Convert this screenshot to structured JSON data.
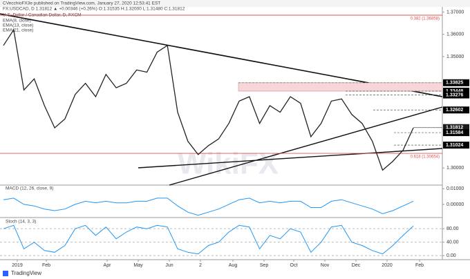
{
  "header": {
    "publisher": "CVecchioFX3e published on TradingView.com, January 27, 2020 12:53:41 EST",
    "symbol_line": "FX:USDCAD, D 1.31812 ▲ +0.00346 (+0.26%) O:1.31535 H:1.32000 L:1.31480 C:1.31812",
    "instrument": "U.S. Dollar / Canadian Dollar, D, FXCM",
    "indicators": [
      "EMA(8, close)",
      "EMA(13, close)",
      "EMA(21, close)"
    ]
  },
  "watermark": "WikiFX",
  "footer": {
    "brand": "TradingView"
  },
  "chart_data": [
    {
      "type": "line",
      "title": "USDCAD",
      "x_labels": [
        "2019",
        "Feb",
        "Apr",
        "May",
        "Jun",
        "2",
        "Aug",
        "Sep",
        "Oct",
        "Nov",
        "Dec",
        "2020",
        "Feb"
      ],
      "series": [
        {
          "name": "Close",
          "color": "#222222",
          "values": [
            1.355,
            1.362,
            1.335,
            1.34,
            1.328,
            1.318,
            1.322,
            1.333,
            1.338,
            1.332,
            1.342,
            1.336,
            1.338,
            1.344,
            1.343,
            1.352,
            1.355,
            1.325,
            1.312,
            1.306,
            1.31,
            1.313,
            1.32,
            1.33,
            1.332,
            1.32,
            1.328,
            1.325,
            1.332,
            1.329,
            1.314,
            1.32,
            1.33,
            1.331,
            1.324,
            1.32,
            1.312,
            1.299,
            1.303,
            1.308,
            1.318
          ]
        }
      ],
      "ylim": [
        1.2923,
        1.3723
      ],
      "yticks": [
        {
          "value": 1.37,
          "label": "1.37000"
        },
        {
          "value": 1.36,
          "label": "1.36000"
        },
        {
          "value": 1.35,
          "label": "1.35000"
        },
        {
          "value": 1.3,
          "label": "1.30000"
        }
      ],
      "levels": [
        1.33825,
        1.33448,
        1.33276,
        1.32602,
        1.31812,
        1.31584,
        1.31024
      ],
      "fib_levels": [
        {
          "value": 1.36858,
          "label": "0.382 (1.36858)"
        },
        {
          "value": 1.30654,
          "label": "0.618 (1.30654)"
        }
      ],
      "zone_color": "#f7d6d9",
      "fib_color": "#e05050"
    },
    {
      "type": "line",
      "title": "MACD (12, 26, close, 9)",
      "series": [
        {
          "name": "MACD",
          "color": "#2196f3",
          "values": [
            0.003,
            0.004,
            0.0,
            -0.001,
            -0.003,
            -0.004,
            -0.003,
            0.0,
            0.002,
            0.001,
            0.002,
            0.001,
            0.001,
            0.002,
            0.002,
            0.004,
            0.004,
            -0.001,
            -0.005,
            -0.007,
            -0.005,
            -0.003,
            0.0,
            0.003,
            0.004,
            0.001,
            0.002,
            0.001,
            0.002,
            0.002,
            -0.002,
            -0.002,
            0.002,
            0.003,
            0.001,
            -0.001,
            -0.003,
            -0.006,
            -0.004,
            -0.001,
            0.002
          ]
        }
      ],
      "ylim": [
        -0.008,
        0.0115
      ],
      "yticks": [
        {
          "value": 0.01,
          "label": "0.01000"
        },
        {
          "value": 0,
          "label": "0.00000"
        }
      ]
    },
    {
      "type": "line",
      "title": "Stoch (14, 3, 3)",
      "series": [
        {
          "name": "%K",
          "color": "#2196f3",
          "values": [
            80,
            90,
            20,
            40,
            15,
            10,
            30,
            80,
            90,
            60,
            85,
            50,
            70,
            85,
            80,
            90,
            85,
            20,
            10,
            5,
            30,
            40,
            70,
            90,
            85,
            20,
            60,
            50,
            80,
            70,
            10,
            40,
            85,
            90,
            40,
            30,
            15,
            5,
            30,
            60,
            88
          ]
        }
      ],
      "ylim": [
        -12,
        107
      ],
      "yticks": [
        {
          "value": 80,
          "label": "80.00"
        },
        {
          "value": 40,
          "label": "40.00"
        },
        {
          "value": 0,
          "label": "0.00"
        }
      ]
    }
  ]
}
